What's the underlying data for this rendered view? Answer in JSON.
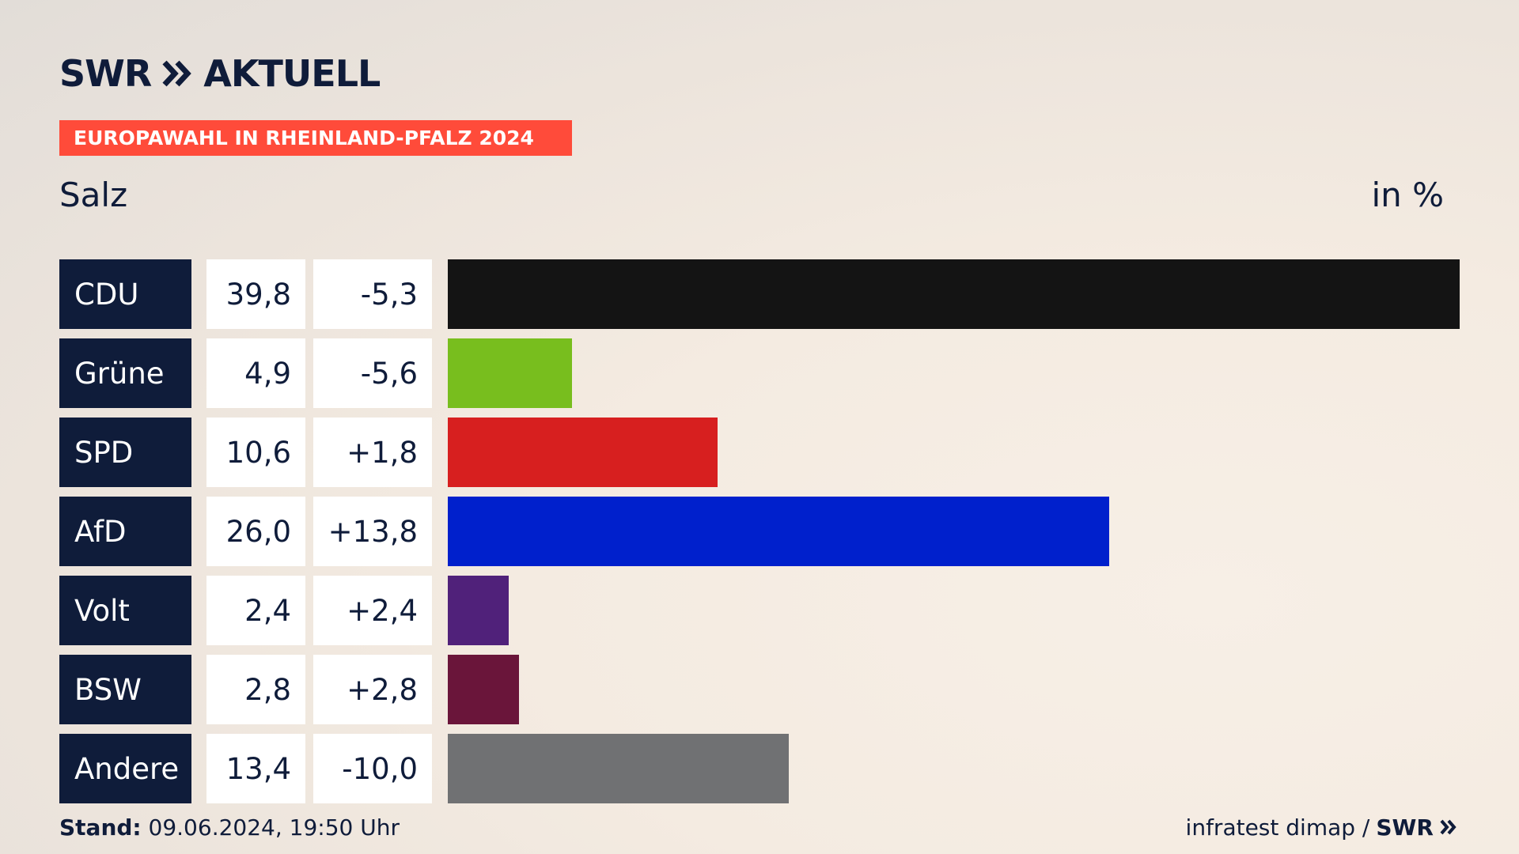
{
  "header": {
    "logo_text": "SWR",
    "logo_suffix": "AKTUELL",
    "banner": "EUROPAWAHL IN RHEINLAND-PFALZ 2024",
    "location": "Salz",
    "unit": "in %"
  },
  "footer": {
    "stand_label": "Stand:",
    "stand_value": "09.06.2024, 19:50 Uhr",
    "source": "infratest dimap /",
    "brand": "SWR"
  },
  "chart_data": {
    "type": "bar",
    "orientation": "horizontal",
    "categories": [
      "CDU",
      "Grüne",
      "SPD",
      "AfD",
      "Volt",
      "BSW",
      "Andere"
    ],
    "values": [
      39.8,
      4.9,
      10.6,
      26.0,
      2.4,
      2.8,
      13.4
    ],
    "value_labels": [
      "39,8",
      "4,9",
      "10,6",
      "26,0",
      "2,4",
      "2,8",
      "13,4"
    ],
    "diff_labels": [
      "-5,3",
      "-5,6",
      "+1,8",
      "+13,8",
      "+2,4",
      "+2,8",
      "-10,0"
    ],
    "colors": [
      "#141414",
      "#78be1e",
      "#d71f1f",
      "#0020cc",
      "#50217a",
      "#6a153a",
      "#707173"
    ],
    "xlim": [
      0,
      39.8
    ]
  }
}
